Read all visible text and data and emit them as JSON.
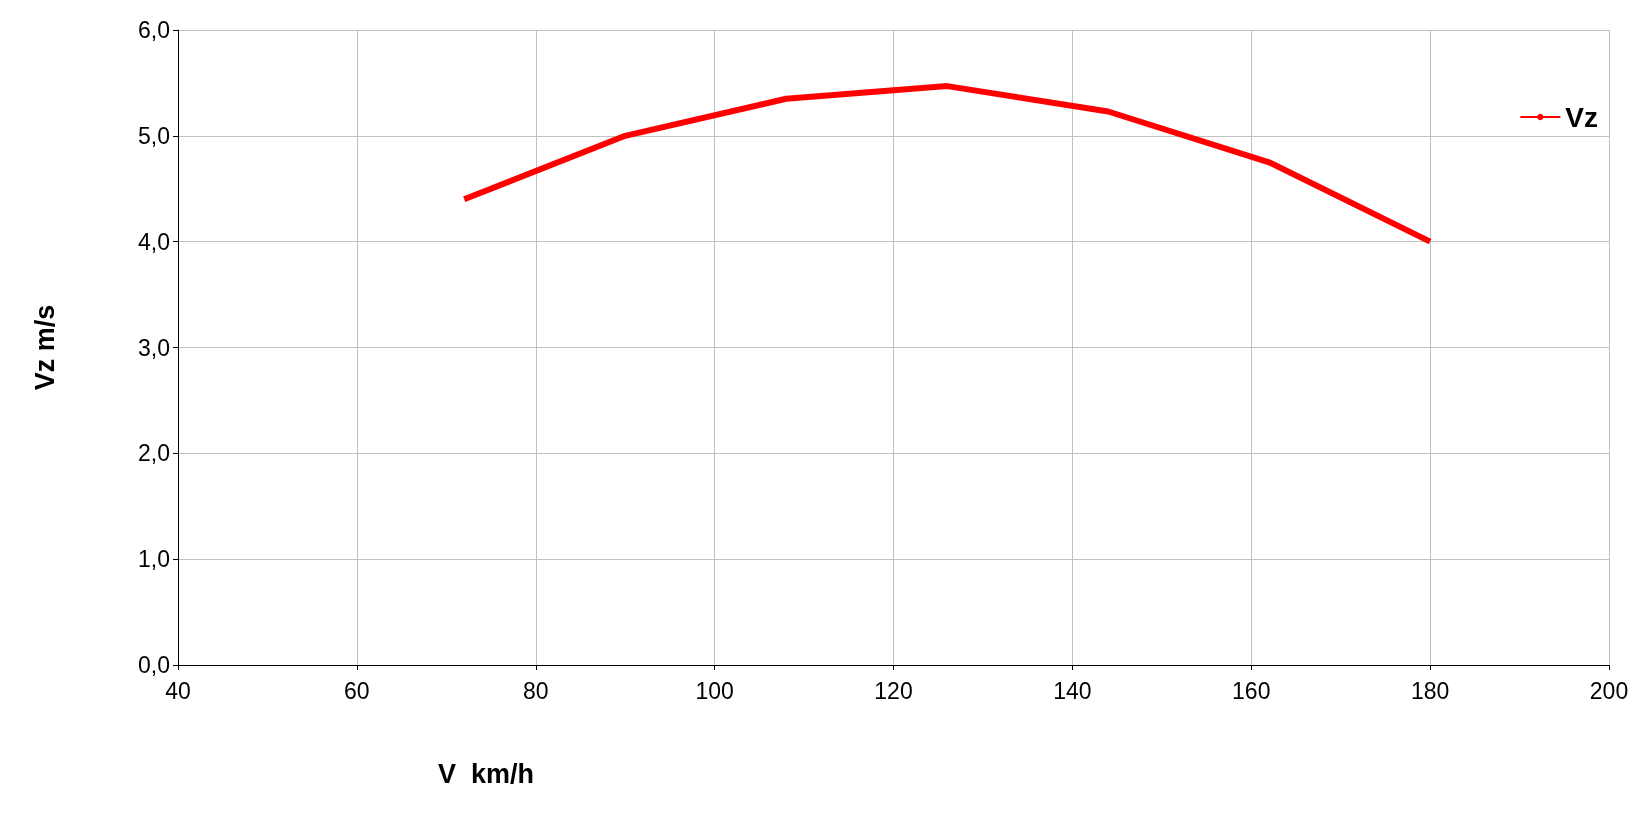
{
  "chart_data": {
    "type": "line",
    "xlabel": "V  km/h",
    "ylabel": "Vz m/s",
    "x": [
      72,
      90,
      108,
      126,
      144,
      162,
      180
    ],
    "series": [
      {
        "name": "Vz",
        "color": "#ff0000",
        "values": [
          4.4,
          5.0,
          5.35,
          5.47,
          5.23,
          4.75,
          4.0
        ]
      }
    ],
    "xlim": [
      40,
      200
    ],
    "xticks": [
      40,
      60,
      80,
      100,
      120,
      140,
      160,
      180,
      200
    ],
    "ylim": [
      0,
      6
    ],
    "yticks": [
      {
        "value": 0,
        "label": "0,0"
      },
      {
        "value": 1,
        "label": "1,0"
      },
      {
        "value": 2,
        "label": "2,0"
      },
      {
        "value": 3,
        "label": "3,0"
      },
      {
        "value": 4,
        "label": "4,0"
      },
      {
        "value": 5,
        "label": "5,0"
      },
      {
        "value": 6,
        "label": "6,0"
      }
    ],
    "grid": true,
    "legend": "top right",
    "marker": "none",
    "line_style": "solid"
  }
}
